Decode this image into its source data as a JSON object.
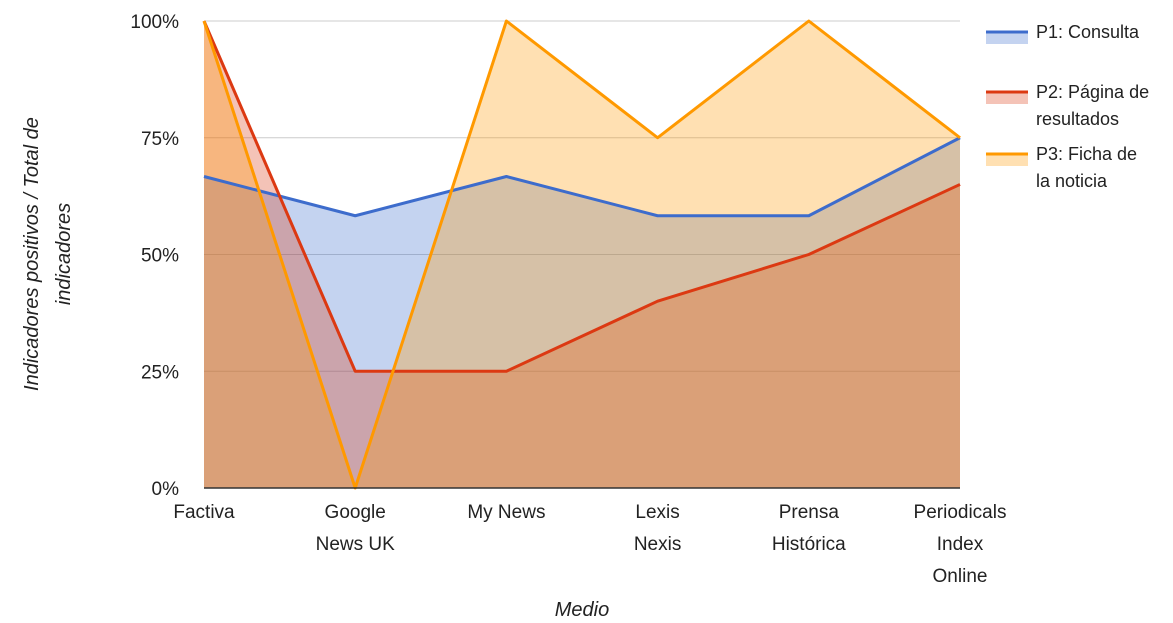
{
  "chart_data": {
    "type": "area",
    "categories": [
      [
        "Factiva"
      ],
      [
        "Google",
        "News UK"
      ],
      [
        "My News"
      ],
      [
        "Lexis",
        "Nexis"
      ],
      [
        "Prensa",
        "Histórica"
      ],
      [
        "Periodicals",
        "Index",
        "Online"
      ]
    ],
    "series": [
      {
        "name": "P1: Consulta",
        "name_lines": [
          "P1: Consulta"
        ],
        "values": [
          66.7,
          58.3,
          66.7,
          58.3,
          58.3,
          75
        ],
        "color": "#3d6ccc",
        "fill": "#a9c0ea"
      },
      {
        "name": "P2: Página de resultados",
        "name_lines": [
          "P2: Página de",
          "resultados"
        ],
        "values": [
          100,
          25,
          25,
          40,
          50,
          65
        ],
        "color": "#dc3912",
        "fill": "#e2a99a"
      },
      {
        "name": "P3: Ficha de la noticia",
        "name_lines": [
          "P3: Ficha de",
          "la noticia"
        ],
        "values": [
          100,
          0,
          100,
          75,
          100,
          75
        ],
        "color": "#ff9900",
        "fill": "#fcd9a5"
      }
    ],
    "xlabel": "Medio",
    "ylabel_lines": [
      "Indicadores positivos / Total de",
      "indicadores"
    ],
    "ylim": [
      0,
      100
    ],
    "yticks": [
      0,
      25,
      50,
      75,
      100
    ],
    "ytick_labels": [
      "0%",
      "25%",
      "50%",
      "75%",
      "100%"
    ],
    "grid": true,
    "legend_position": "right"
  }
}
